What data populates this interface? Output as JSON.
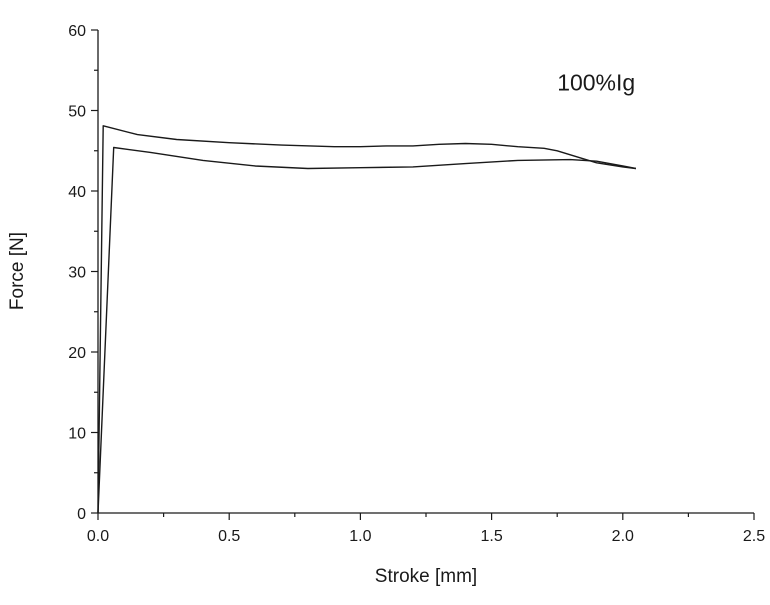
{
  "chart_data": {
    "type": "line",
    "title": "",
    "xlabel": "Stroke [mm]",
    "ylabel": "Force [N]",
    "xlim": [
      0.0,
      2.5
    ],
    "ylim": [
      0,
      60
    ],
    "x_ticks": [
      "0.0",
      "0.5",
      "1.0",
      "1.5",
      "2.0",
      "2.5"
    ],
    "y_ticks": [
      "0",
      "10",
      "20",
      "30",
      "40",
      "50",
      "60"
    ],
    "grid": false,
    "legend": "none",
    "annotations": [
      {
        "text": "100%Ig",
        "x": 1.75,
        "y": 52.5
      }
    ],
    "series": [
      {
        "color": "#1a1a1a",
        "x": [
          0.0,
          0.02,
          0.15,
          0.3,
          0.5,
          0.7,
          0.9,
          1.0,
          1.1,
          1.2,
          1.3,
          1.4,
          1.5,
          1.6,
          1.7,
          1.75,
          1.8,
          1.85,
          1.9,
          2.0,
          2.05
        ],
        "y": [
          0.0,
          48.1,
          47.0,
          46.4,
          46.0,
          45.7,
          45.5,
          45.5,
          45.6,
          45.6,
          45.8,
          45.9,
          45.8,
          45.5,
          45.3,
          45.0,
          44.5,
          44.0,
          43.5,
          43.0,
          42.8
        ]
      },
      {
        "color": "#1a1a1a",
        "x": [
          0.0,
          0.06,
          0.2,
          0.4,
          0.6,
          0.8,
          1.0,
          1.2,
          1.4,
          1.6,
          1.8,
          1.9,
          2.0,
          2.05
        ],
        "y": [
          0.0,
          45.4,
          44.8,
          43.8,
          43.1,
          42.8,
          42.9,
          43.0,
          43.4,
          43.8,
          43.9,
          43.7,
          43.1,
          42.8
        ]
      }
    ]
  }
}
